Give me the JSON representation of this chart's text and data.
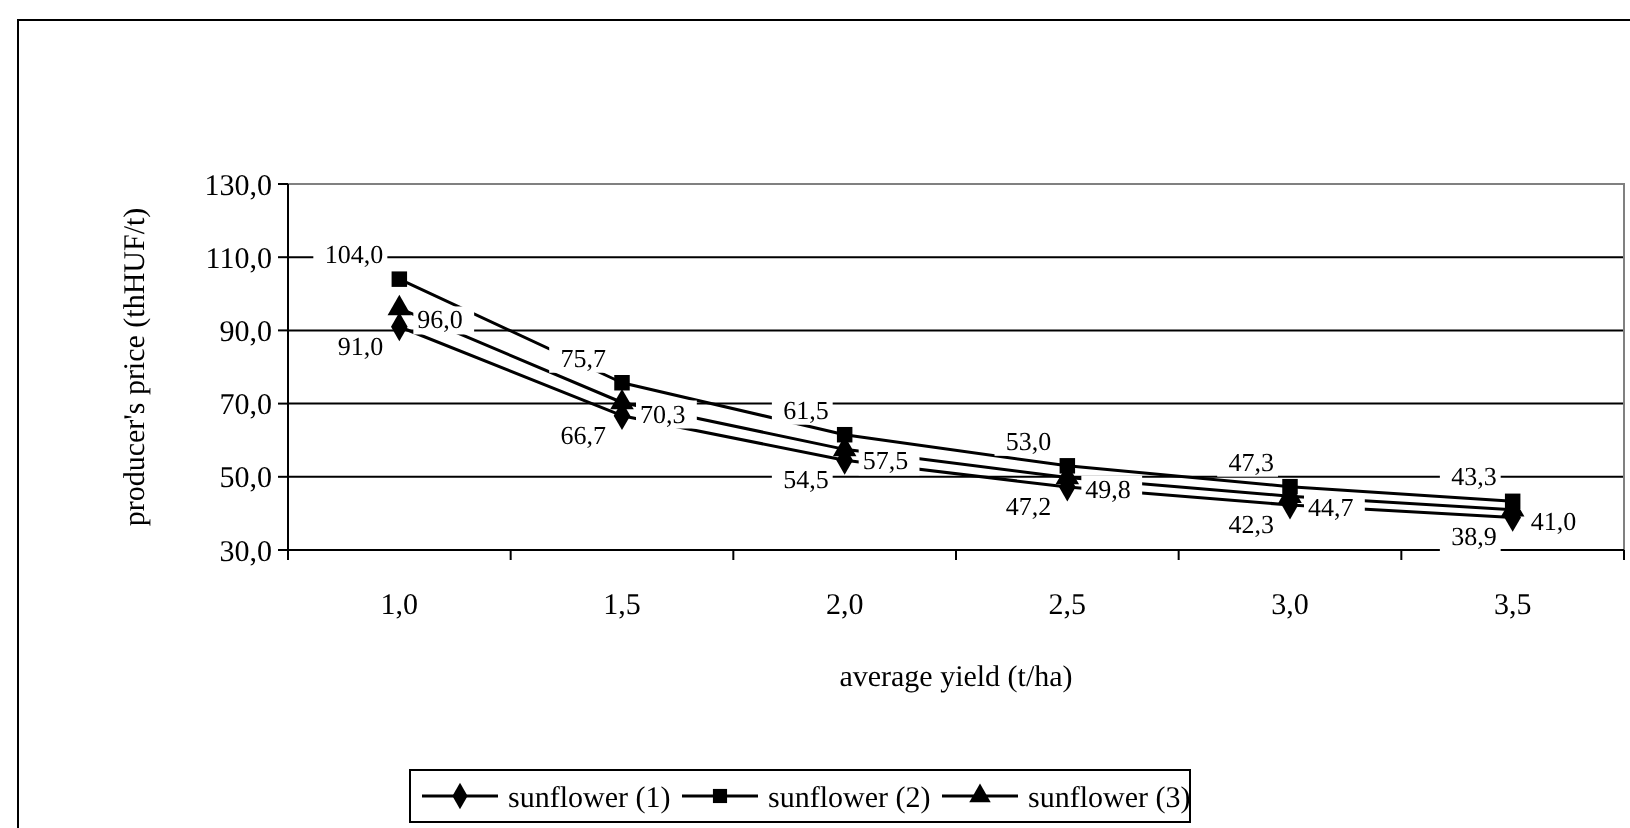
{
  "chart_data": {
    "type": "line",
    "xlabel": "average yield (t/ha)",
    "ylabel": "producer's price (thHUF/t)",
    "categories": [
      "1,0",
      "1,5",
      "2,0",
      "2,5",
      "3,0",
      "3,5"
    ],
    "ylim": [
      30,
      130
    ],
    "yticks": [
      {
        "value": 30,
        "label": "30,0"
      },
      {
        "value": 50,
        "label": "50,0"
      },
      {
        "value": 70,
        "label": "70,0"
      },
      {
        "value": 90,
        "label": "90,0"
      },
      {
        "value": 110,
        "label": "110,0"
      },
      {
        "value": 130,
        "label": "130,0"
      }
    ],
    "grid": "y",
    "legend": "bottom",
    "line_style": "solid",
    "series": [
      {
        "name": "sunflower (1)",
        "color": "#000000",
        "marker": "diamond",
        "values": [
          91.0,
          66.7,
          54.5,
          47.2,
          42.3,
          38.9
        ],
        "value_labels": [
          "91,0",
          "66,7",
          "54,5",
          "47,2",
          "42,3",
          "38,9"
        ]
      },
      {
        "name": "sunflower (2)",
        "color": "#000000",
        "marker": "square",
        "values": [
          104.0,
          75.7,
          61.5,
          53.0,
          47.3,
          43.3
        ],
        "value_labels": [
          "104,0",
          "75,7",
          "61,5",
          "53,0",
          "47,3",
          "43,3"
        ]
      },
      {
        "name": "sunflower (3)",
        "color": "#000000",
        "marker": "triangle",
        "values": [
          96.0,
          70.3,
          57.5,
          49.8,
          44.7,
          41.0
        ],
        "value_labels": [
          "96,0",
          "70,3",
          "57,5",
          "49,8",
          "44,7",
          "41,0"
        ]
      }
    ]
  }
}
